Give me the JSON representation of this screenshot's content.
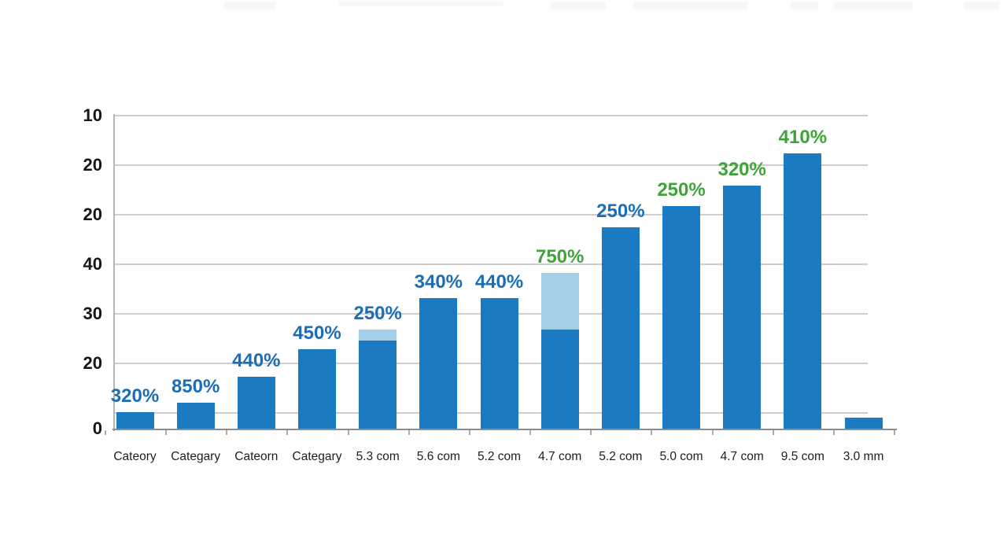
{
  "chart_data": {
    "type": "bar",
    "title": "",
    "xlabel": "",
    "ylabel": "",
    "grid": true,
    "legend": "none",
    "categories": [
      "Cateory",
      "Categary",
      "Cateorn",
      "Categary",
      "5.3 com",
      "5.6 com",
      "5.2 com",
      "4.7 com",
      "5.2 com",
      "5.0 com",
      "4.7 com",
      "9.5 com",
      "3.0 mm"
    ],
    "series": [
      {
        "name": "dark-blue-segment",
        "values": [
          3.3,
          5.2,
          10.5,
          16.0,
          17.8,
          26.3,
          26.3,
          20.0,
          40.6,
          44.9,
          49.0,
          55.6,
          2.2
        ]
      },
      {
        "name": "light-blue-cap-segment",
        "values": [
          0,
          0,
          0,
          0,
          2.2,
          0,
          0,
          11.4,
          0,
          0,
          0,
          0,
          0
        ]
      }
    ],
    "bar_labels": [
      "320%",
      "850%",
      "440%",
      "450%",
      "250%",
      "340%",
      "440%",
      "750%",
      "250%",
      "250%",
      "320%",
      "410%",
      ""
    ],
    "bar_label_colors": [
      "blue",
      "blue",
      "blue",
      "blue",
      "blue",
      "blue",
      "blue",
      "green",
      "blue",
      "green",
      "green",
      "green",
      "none"
    ],
    "ytick_labels": [
      "10",
      "20",
      "20",
      "40",
      "30",
      "20",
      "0"
    ],
    "ylim": [
      0,
      63
    ],
    "colors": {
      "bar": "#1b7ac1",
      "bar_light_cap": "#a3cfe9",
      "label_blue": "#1a6db6",
      "label_green": "#3fa437",
      "gridline": "#cecece",
      "axis_line": "#8d8d8d",
      "tick_text": "#161616"
    }
  }
}
